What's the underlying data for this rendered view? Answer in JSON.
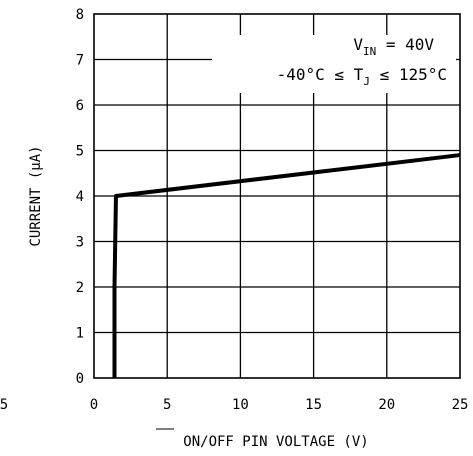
{
  "chart_data": {
    "type": "line",
    "title": "",
    "xlabel": "ON/OFF PIN VOLTAGE (V)",
    "xlabel_overline": "ON",
    "ylabel": "CURRENT (μA)",
    "xlim": [
      0,
      25
    ],
    "ylim": [
      0,
      8
    ],
    "x_ticks": [
      0,
      5,
      10,
      15,
      20,
      25
    ],
    "y_ticks": [
      0,
      1,
      2,
      3,
      4,
      5,
      6,
      7,
      8
    ],
    "x_tick_labels": [
      "0",
      "5",
      "10",
      "15",
      "20",
      "25"
    ],
    "y_tick_labels": [
      "0",
      "1",
      "2",
      "3",
      "4",
      "5",
      "6",
      "7",
      "8"
    ],
    "partial_tick_label": "5",
    "grid": true,
    "series": [
      {
        "x": [
          1.4,
          1.4,
          1.5,
          25
        ],
        "y": [
          0,
          2.0,
          4.0,
          4.9
        ],
        "color": "#000000"
      }
    ],
    "annotations": [
      "V_IN = 40V",
      "-40°C ≤ T_J ≤ 125°C"
    ]
  }
}
